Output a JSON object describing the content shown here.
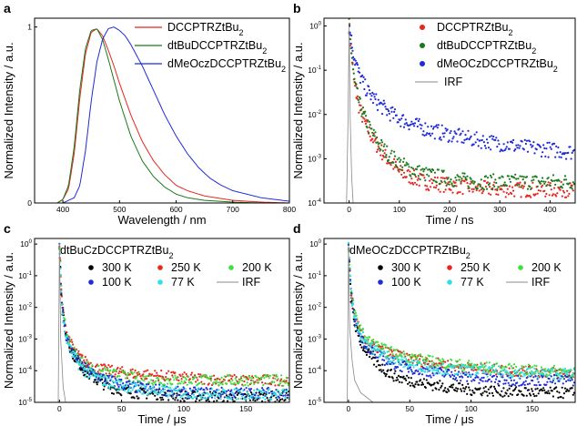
{
  "chart_data": [
    {
      "panel": "a",
      "type": "line",
      "xlabel": "Wavelength / nm",
      "ylabel": "Normalized Intensity / a.u.",
      "xlim": [
        350,
        800
      ],
      "ylim": [
        0,
        1.05
      ],
      "xticks": [
        "400",
        "500",
        "600",
        "700",
        "800"
      ],
      "yticks": [
        "0",
        "1"
      ],
      "legend_position": "top-right",
      "series": [
        {
          "name": "DCCPTRZtBu2",
          "name_main": "DCCPTRZtBu",
          "name_sub": "2",
          "color": "#e8251f",
          "x": [
            390,
            400,
            410,
            420,
            430,
            440,
            450,
            460,
            470,
            480,
            490,
            500,
            520,
            540,
            560,
            580,
            600,
            620,
            650,
            700,
            750,
            800
          ],
          "y": [
            0.0,
            0.02,
            0.08,
            0.28,
            0.6,
            0.85,
            0.97,
            0.99,
            0.95,
            0.87,
            0.78,
            0.68,
            0.5,
            0.35,
            0.24,
            0.16,
            0.1,
            0.07,
            0.04,
            0.015,
            0.005,
            0.0
          ]
        },
        {
          "name": "dtBuDCCPTRZtBu2",
          "name_main": "dtBuDCCPTRZtBu",
          "name_sub": "2",
          "color": "#1a7a1a",
          "x": [
            390,
            400,
            410,
            420,
            430,
            440,
            450,
            460,
            470,
            480,
            490,
            500,
            520,
            540,
            560,
            580,
            600,
            620,
            650,
            700,
            750,
            800
          ],
          "y": [
            0.0,
            0.02,
            0.1,
            0.32,
            0.65,
            0.88,
            0.98,
            0.99,
            0.93,
            0.82,
            0.7,
            0.58,
            0.38,
            0.24,
            0.15,
            0.09,
            0.05,
            0.03,
            0.015,
            0.005,
            0.0,
            0.0
          ]
        },
        {
          "name": "dMeOczDCCPTRZtBu2",
          "name_main": "dMeOczDCCPTRZtBu",
          "name_sub": "2",
          "color": "#1f2bd6",
          "x": [
            400,
            420,
            430,
            440,
            450,
            460,
            470,
            480,
            490,
            500,
            510,
            520,
            540,
            560,
            580,
            600,
            620,
            640,
            660,
            680,
            700,
            750,
            800
          ],
          "y": [
            0.0,
            0.03,
            0.1,
            0.3,
            0.58,
            0.8,
            0.93,
            0.99,
            1.0,
            0.98,
            0.95,
            0.9,
            0.78,
            0.64,
            0.5,
            0.38,
            0.28,
            0.2,
            0.14,
            0.1,
            0.07,
            0.03,
            0.01
          ]
        }
      ]
    },
    {
      "panel": "b",
      "type": "scatter",
      "xlabel": "Time / ns",
      "ylabel": "Normalized Intensity / a.u.",
      "scale_y": "log",
      "xlim": [
        -50,
        450
      ],
      "ylim": [
        0.0001,
        1.5
      ],
      "xticks": [
        "0",
        "100",
        "200",
        "300",
        "400"
      ],
      "yticks": [
        "10-4",
        "10-3",
        "10-2",
        "10-1",
        "100"
      ],
      "legend_position": "top-right",
      "series": [
        {
          "name": "DCCPTRZtBu2",
          "name_main": "DCCPTRZtBu",
          "name_sub": "2",
          "color": "#e8251f",
          "marker": "dot",
          "x": [
            0,
            10,
            20,
            30,
            40,
            50,
            60,
            70,
            80,
            90,
            100,
            120,
            150,
            200,
            250,
            300,
            350,
            400,
            450
          ],
          "y": [
            1.0,
            0.05,
            0.015,
            0.007,
            0.004,
            0.0025,
            0.0017,
            0.0012,
            0.0009,
            0.0007,
            0.0005,
            0.0004,
            0.0003,
            0.00025,
            0.00022,
            0.0002,
            0.0002,
            0.0002,
            0.0002
          ]
        },
        {
          "name": "dtBuDCCPTRZtBu2",
          "name_main": "dtBuDCCPTRZtBu",
          "name_sub": "2",
          "color": "#1a7a1a",
          "marker": "dot",
          "x": [
            0,
            10,
            20,
            30,
            40,
            50,
            60,
            70,
            80,
            90,
            100,
            120,
            150,
            200,
            250,
            300,
            350,
            400,
            450
          ],
          "y": [
            1.0,
            0.06,
            0.018,
            0.009,
            0.005,
            0.0032,
            0.0022,
            0.0016,
            0.0012,
            0.001,
            0.0008,
            0.0006,
            0.00045,
            0.00035,
            0.0003,
            0.0003,
            0.0003,
            0.0003,
            0.0003
          ]
        },
        {
          "name": "dMeOCzDCCPTRZtBu2",
          "name_main": "dMeOCzDCCPTRZtBu",
          "name_sub": "2",
          "color": "#1f2bd6",
          "marker": "dot",
          "x": [
            0,
            10,
            20,
            30,
            40,
            50,
            60,
            80,
            100,
            130,
            160,
            200,
            250,
            300,
            350,
            400,
            450
          ],
          "y": [
            1.0,
            0.2,
            0.08,
            0.045,
            0.03,
            0.022,
            0.017,
            0.011,
            0.008,
            0.0058,
            0.0045,
            0.0035,
            0.0027,
            0.0022,
            0.0018,
            0.0016,
            0.0014
          ]
        },
        {
          "name": "IRF",
          "color": "#888888",
          "marker": "line",
          "x": [
            -5,
            -2,
            0,
            2,
            5,
            8
          ],
          "y": [
            0.0001,
            0.01,
            1.0,
            0.01,
            0.0004,
            0.0001
          ]
        }
      ]
    },
    {
      "panel": "c",
      "type": "scatter",
      "title": "dtBuCzDCCPTRZtBu2",
      "title_main": "dtBuCzDCCPTRZtBu",
      "title_sub": "2",
      "xlabel": "Time / μs",
      "ylabel": "Normalized Intensity / a.u.",
      "scale_y": "log",
      "xlim": [
        -20,
        185
      ],
      "ylim": [
        1e-05,
        1.5
      ],
      "xticks": [
        "0",
        "50",
        "100",
        "150"
      ],
      "yticks": [
        "10-5",
        "10-4",
        "10-3",
        "10-2",
        "10-1",
        "100"
      ],
      "legend_position": "top-right",
      "series": [
        {
          "name": "300 K",
          "color": "#000000",
          "marker": "dot",
          "x": [
            0,
            2,
            5,
            10,
            15,
            20,
            30,
            40,
            60,
            80,
            100,
            130,
            160,
            185
          ],
          "y": [
            1.0,
            0.01,
            0.0015,
            0.0004,
            0.00018,
            0.0001,
            5e-05,
            3e-05,
            2e-05,
            1.8e-05,
            1.6e-05,
            1.5e-05,
            1.5e-05,
            1.5e-05
          ]
        },
        {
          "name": "250 K",
          "color": "#e8251f",
          "marker": "dot",
          "x": [
            0,
            2,
            5,
            10,
            15,
            20,
            30,
            40,
            60,
            80,
            100,
            130,
            160,
            185
          ],
          "y": [
            1.0,
            0.015,
            0.002,
            0.0006,
            0.0003,
            0.0002,
            0.00012,
            0.0001,
            8e-05,
            7e-05,
            6e-05,
            5e-05,
            5e-05,
            5e-05
          ]
        },
        {
          "name": "200 K",
          "color": "#3ee03e",
          "marker": "dot",
          "x": [
            0,
            2,
            5,
            10,
            15,
            20,
            30,
            40,
            60,
            80,
            100,
            130,
            160,
            185
          ],
          "y": [
            1.0,
            0.012,
            0.0018,
            0.0005,
            0.00025,
            0.00016,
            0.0001,
            8e-05,
            6e-05,
            5e-05,
            5e-05,
            5e-05,
            5e-05,
            5e-05
          ]
        },
        {
          "name": "100 K",
          "color": "#1f2bd6",
          "marker": "dot",
          "x": [
            0,
            2,
            5,
            10,
            15,
            20,
            30,
            40,
            60,
            80,
            100,
            130,
            160,
            185
          ],
          "y": [
            1.0,
            0.01,
            0.0014,
            0.0004,
            0.0002,
            0.00012,
            7e-05,
            5e-05,
            3e-05,
            2.5e-05,
            2e-05,
            2e-05,
            2e-05,
            2e-05
          ]
        },
        {
          "name": "77 K",
          "color": "#2ee0e0",
          "marker": "dot",
          "x": [
            0,
            2,
            5,
            10,
            15,
            20,
            30,
            40,
            60,
            80,
            100,
            130,
            160,
            185
          ],
          "y": [
            1.0,
            0.009,
            0.0012,
            0.00035,
            0.00017,
            0.0001,
            6e-05,
            4e-05,
            2.8e-05,
            2.2e-05,
            2e-05,
            1.8e-05,
            1.8e-05,
            1.8e-05
          ]
        },
        {
          "name": "IRF",
          "color": "#888888",
          "marker": "line",
          "x": [
            -1,
            0,
            1,
            3,
            5
          ],
          "y": [
            1e-05,
            1.0,
            0.001,
            3e-05,
            1e-05
          ]
        }
      ]
    },
    {
      "panel": "d",
      "type": "scatter",
      "title": "dMeOCzDCCPTRZtBu2",
      "title_main": "dMeOCzDCCPTRZtBu",
      "title_sub": "2",
      "xlabel": "Time / μs",
      "ylabel": "Normalized Intensity / a.u.",
      "scale_y": "log",
      "xlim": [
        -20,
        185
      ],
      "ylim": [
        1e-05,
        1.5
      ],
      "xticks": [
        "0",
        "50",
        "100",
        "150"
      ],
      "yticks": [
        "10-5",
        "10-4",
        "10-3",
        "10-2",
        "10-1",
        "100"
      ],
      "legend_position": "top-right",
      "series": [
        {
          "name": "300 K",
          "color": "#000000",
          "marker": "dot",
          "x": [
            0,
            2,
            5,
            10,
            15,
            20,
            30,
            40,
            60,
            80,
            100,
            130,
            160,
            185
          ],
          "y": [
            1.0,
            0.02,
            0.003,
            0.0008,
            0.0004,
            0.00022,
            0.0001,
            6e-05,
            4e-05,
            3e-05,
            2.5e-05,
            2.2e-05,
            2e-05,
            2e-05
          ]
        },
        {
          "name": "250 K",
          "color": "#e8251f",
          "marker": "dot",
          "x": [
            0,
            2,
            5,
            10,
            15,
            20,
            30,
            40,
            60,
            80,
            100,
            130,
            160,
            185
          ],
          "y": [
            1.0,
            0.03,
            0.005,
            0.0015,
            0.0009,
            0.0006,
            0.0004,
            0.0003,
            0.0002,
            0.00015,
            0.00012,
            0.0001,
            9e-05,
            8e-05
          ]
        },
        {
          "name": "200 K",
          "color": "#3ee03e",
          "marker": "dot",
          "x": [
            0,
            2,
            5,
            10,
            15,
            20,
            30,
            40,
            60,
            80,
            100,
            130,
            160,
            185
          ],
          "y": [
            1.0,
            0.035,
            0.006,
            0.0018,
            0.001,
            0.0007,
            0.00045,
            0.00032,
            0.00022,
            0.00017,
            0.00014,
            0.00011,
            0.0001,
            9e-05
          ]
        },
        {
          "name": "100 K",
          "color": "#1f2bd6",
          "marker": "dot",
          "x": [
            0,
            2,
            5,
            10,
            15,
            20,
            30,
            40,
            60,
            80,
            100,
            130,
            160,
            185
          ],
          "y": [
            1.0,
            0.025,
            0.004,
            0.0012,
            0.0006,
            0.0004,
            0.00022,
            0.00015,
            0.0001,
            8e-05,
            6e-05,
            5e-05,
            5e-05,
            5e-05
          ]
        },
        {
          "name": "77 K",
          "color": "#2ee0e0",
          "marker": "dot",
          "x": [
            0,
            2,
            5,
            10,
            15,
            20,
            30,
            40,
            60,
            80,
            100,
            130,
            160,
            185
          ],
          "y": [
            1.0,
            0.028,
            0.0045,
            0.0014,
            0.0008,
            0.0005,
            0.0003,
            0.0002,
            0.00014,
            0.00011,
            0.0001,
            9e-05,
            8e-05,
            8e-05
          ]
        },
        {
          "name": "IRF",
          "color": "#888888",
          "marker": "line",
          "x": [
            -1,
            0,
            1,
            3,
            5,
            10,
            20
          ],
          "y": [
            1e-05,
            1.0,
            0.002,
            0.0002,
            5e-05,
            2e-05,
            1e-05
          ]
        }
      ]
    }
  ]
}
